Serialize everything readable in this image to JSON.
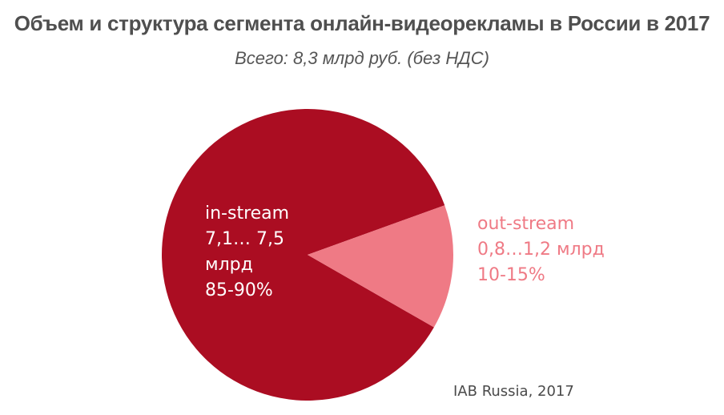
{
  "chart_data": {
    "type": "pie",
    "title": "Объем и структура сегмента онлайн-видеорекламы в России в 2017",
    "subtitle": "Всего: 8,3 млрд руб. (без НДС)",
    "slices": [
      {
        "name": "in-stream",
        "value_text_1": "7,1… 7,5",
        "value_text_2": "млрд",
        "share_text": "85-90%",
        "share": 0.862,
        "color": "#ab0d22"
      },
      {
        "name": "out-stream",
        "value_text": "0,8…1,2 млрд",
        "share_text": "10-15%",
        "share": 0.138,
        "color": "#ef7a85"
      }
    ],
    "source": "IAB Russia, 2017"
  }
}
